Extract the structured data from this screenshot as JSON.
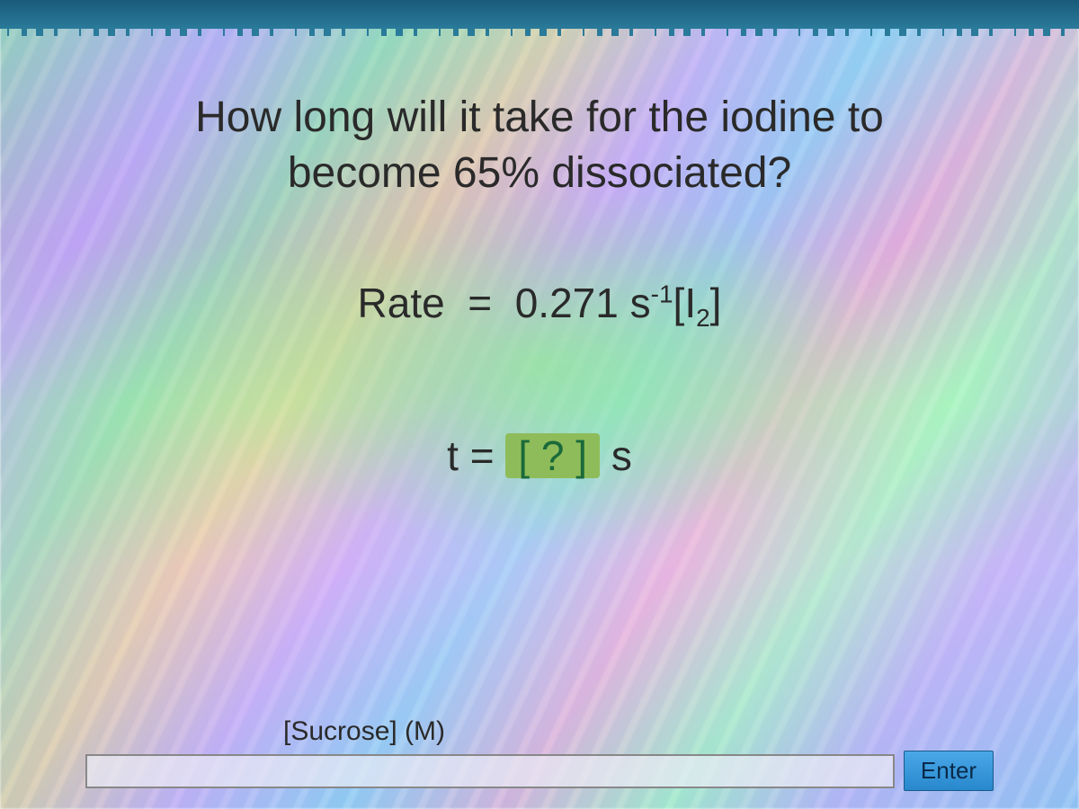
{
  "question": {
    "line1": "How long will it take for the iodine to",
    "line2": "become 65% dissociated?"
  },
  "rate": {
    "label": "Rate",
    "equals": "=",
    "value": "0.271",
    "unit_base": "s",
    "unit_exp": "-1",
    "species": "I",
    "species_sub": "2"
  },
  "answer": {
    "var": "t",
    "equals": "=",
    "placeholder": "?",
    "unit": "s"
  },
  "input": {
    "label": "[Sucrose] (M)",
    "value": ""
  },
  "buttons": {
    "enter": "Enter"
  },
  "colors": {
    "text": "#2a2a2a",
    "answer_box_bg": "#8FBC5A",
    "answer_box_text": "#1a6a3a",
    "enter_bg_top": "#4aa8e8",
    "enter_bg_bottom": "#2888cc",
    "top_border": "#1a5a7a"
  }
}
